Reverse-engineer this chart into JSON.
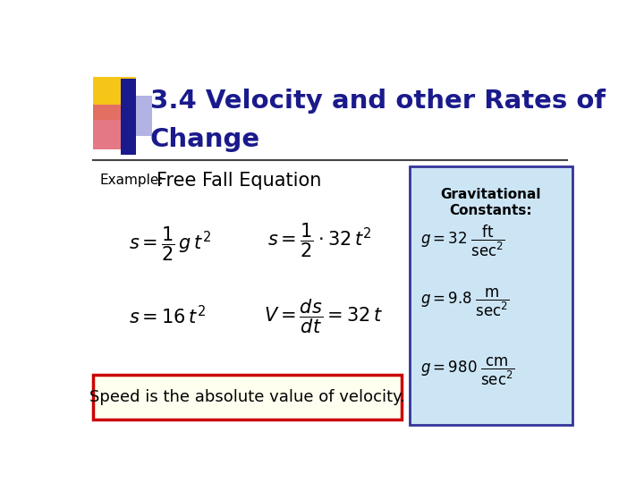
{
  "title_line1": "3.4 Velocity and other Rates of",
  "title_line2": "Change",
  "title_color": "#1a1a8c",
  "background_color": "#ffffff",
  "example_label": "Example:",
  "example_title": "Free Fall Equation",
  "speed_text": "Speed is the absolute value of velocity.",
  "box_title": "Gravitational\nConstants:",
  "grav_box_color": "#cce5f5",
  "grav_box_edge": "#333399",
  "speed_box_edge": "#cc0000",
  "speed_box_fill": "#fffff0",
  "hline_color": "#444444",
  "accent_colors": {
    "yellow": "#f5c518",
    "pink": "#e06070",
    "blue_dark": "#1a1a8c",
    "blue_light": "#6666cc"
  }
}
